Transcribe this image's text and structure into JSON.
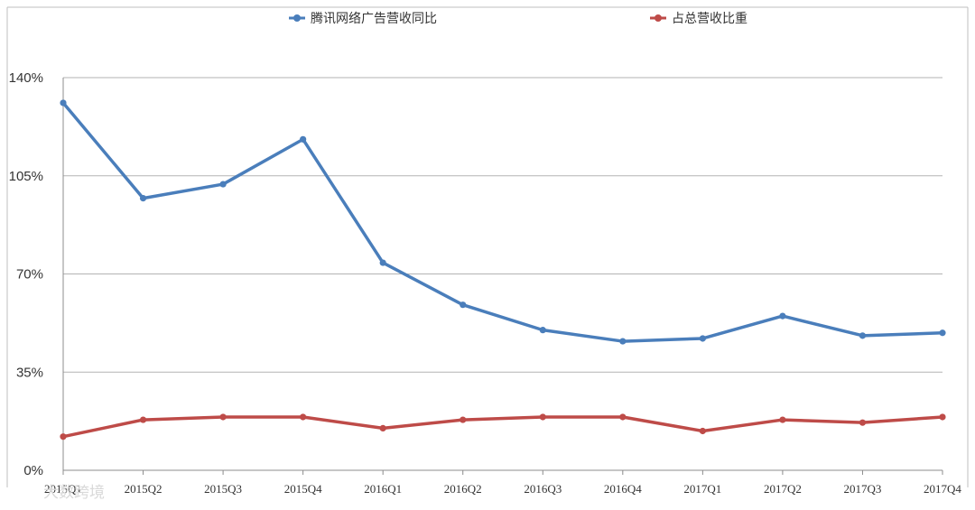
{
  "watermark": "大数跨境",
  "chart_data": {
    "type": "line",
    "categories": [
      "2015Q1",
      "2015Q2",
      "2015Q3",
      "2015Q4",
      "2016Q1",
      "2016Q2",
      "2016Q3",
      "2016Q4",
      "2017Q1",
      "2017Q2",
      "2017Q3",
      "2017Q4"
    ],
    "y_ticks": [
      "0%",
      "35%",
      "70%",
      "105%",
      "140%"
    ],
    "ylim": [
      0,
      140
    ],
    "grid": true,
    "legend_position": "top",
    "series": [
      {
        "name": "腾讯网络广告营收同比",
        "color": "#4a7ebb",
        "values": [
          131,
          97,
          102,
          118,
          74,
          59,
          50,
          46,
          47,
          55,
          48,
          49
        ]
      },
      {
        "name": "占总营收比重",
        "color": "#be4b48",
        "values": [
          12,
          18,
          19,
          19,
          15,
          18,
          19,
          19,
          14,
          18,
          17,
          19
        ]
      }
    ]
  }
}
